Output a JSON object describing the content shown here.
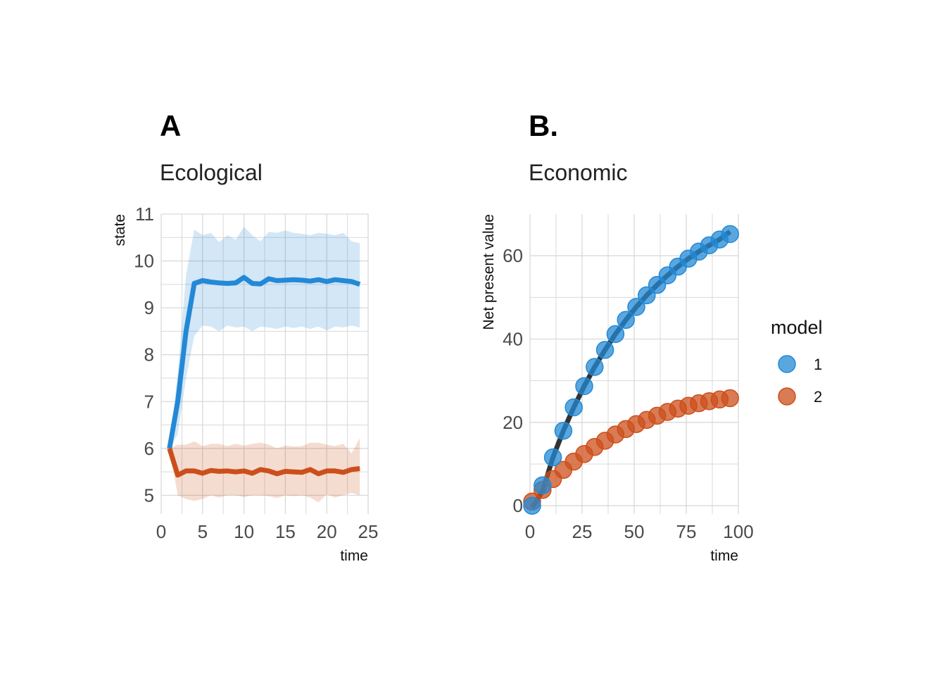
{
  "colors": {
    "model_1": "#2389d6",
    "model_2": "#cc4f1b",
    "fit_line": "#333333",
    "grid": "#d9d9d9"
  },
  "legend": {
    "title": "model",
    "items": [
      "1",
      "2"
    ]
  },
  "panels": {
    "a": {
      "tag": "A",
      "title": "Ecological"
    },
    "b": {
      "tag": "B.",
      "title": "Economic"
    }
  },
  "chart_data": [
    {
      "type": "line",
      "tag": "A",
      "title": "Ecological",
      "xlabel": "time",
      "ylabel": "state",
      "xlim": [
        0,
        25
      ],
      "ylim": [
        4.6,
        11
      ],
      "x_ticks": [
        0,
        5,
        10,
        15,
        20,
        25
      ],
      "y_ticks": [
        5,
        6,
        7,
        8,
        9,
        10,
        11
      ],
      "grid": true,
      "ribbon": true,
      "x": [
        1,
        2,
        3,
        4,
        5,
        6,
        7,
        8,
        9,
        10,
        11,
        12,
        13,
        14,
        15,
        16,
        17,
        18,
        19,
        20,
        21,
        22,
        23,
        24
      ],
      "series": [
        {
          "name": "1",
          "values": [
            6.0,
            7.0,
            8.5,
            9.52,
            9.58,
            9.55,
            9.53,
            9.52,
            9.53,
            9.65,
            9.52,
            9.51,
            9.62,
            9.58,
            9.59,
            9.6,
            9.59,
            9.57,
            9.6,
            9.56,
            9.6,
            9.58,
            9.56,
            9.5
          ],
          "lower": [
            6.0,
            6.3,
            7.5,
            8.4,
            8.62,
            8.6,
            8.5,
            8.62,
            8.58,
            8.6,
            8.5,
            8.6,
            8.58,
            8.55,
            8.6,
            8.57,
            8.6,
            8.55,
            8.6,
            8.52,
            8.6,
            8.58,
            8.62,
            8.58
          ],
          "upper": [
            6.0,
            7.6,
            9.7,
            10.67,
            10.55,
            10.6,
            10.4,
            10.55,
            10.45,
            10.73,
            10.55,
            10.42,
            10.62,
            10.6,
            10.65,
            10.6,
            10.58,
            10.55,
            10.6,
            10.58,
            10.55,
            10.6,
            10.42,
            10.38
          ]
        },
        {
          "name": "2",
          "values": [
            6.0,
            5.43,
            5.52,
            5.52,
            5.47,
            5.53,
            5.51,
            5.52,
            5.5,
            5.52,
            5.47,
            5.55,
            5.52,
            5.46,
            5.51,
            5.5,
            5.49,
            5.55,
            5.46,
            5.52,
            5.52,
            5.49,
            5.55,
            5.57
          ],
          "lower": [
            6.0,
            5.0,
            4.92,
            4.88,
            4.92,
            5.0,
            4.95,
            5.0,
            5.0,
            4.96,
            5.0,
            5.0,
            4.98,
            4.94,
            5.0,
            4.98,
            5.0,
            4.95,
            4.85,
            5.02,
            4.95,
            5.0,
            5.05,
            5.0
          ],
          "upper": [
            6.0,
            6.08,
            6.08,
            6.15,
            6.05,
            6.1,
            6.1,
            6.05,
            6.1,
            6.06,
            6.1,
            6.12,
            6.08,
            6.0,
            6.06,
            6.04,
            6.05,
            6.12,
            6.12,
            6.08,
            6.05,
            6.1,
            5.9,
            6.22
          ]
        }
      ]
    },
    {
      "type": "scatter",
      "tag": "B.",
      "title": "Economic",
      "xlabel": "time",
      "ylabel": "Net present value",
      "xlim": [
        0,
        100
      ],
      "ylim": [
        -2,
        70
      ],
      "x_ticks": [
        0,
        25,
        50,
        75,
        100
      ],
      "y_ticks": [
        0,
        20,
        40,
        60
      ],
      "grid": true,
      "legend_position": "right",
      "x": [
        1,
        6,
        11,
        16,
        21,
        26,
        31,
        36,
        41,
        46,
        51,
        56,
        61,
        66,
        71,
        76,
        81,
        86,
        91,
        96
      ],
      "series": [
        {
          "name": "1",
          "values": [
            0.0,
            4.9,
            11.6,
            18.0,
            23.6,
            28.7,
            33.3,
            37.4,
            41.2,
            44.6,
            47.7,
            50.5,
            53.0,
            55.3,
            57.4,
            59.3,
            61.0,
            62.5,
            63.9,
            65.2
          ]
        },
        {
          "name": "2",
          "values": [
            1.0,
            3.8,
            6.4,
            8.6,
            10.6,
            12.4,
            14.1,
            15.6,
            17.1,
            18.4,
            19.6,
            20.6,
            21.6,
            22.5,
            23.3,
            24.0,
            24.6,
            25.1,
            25.5,
            25.8
          ]
        }
      ],
      "fit_line": {
        "x": [
          1,
          6,
          11,
          16,
          21,
          26,
          31,
          36,
          41,
          46,
          51,
          56,
          61,
          66,
          71,
          76,
          81,
          86,
          91,
          96
        ],
        "values": [
          -0.5,
          3.5,
          11.6,
          18.0,
          23.6,
          28.7,
          33.3,
          37.4,
          41.2,
          44.6,
          47.7,
          50.5,
          53.0,
          55.3,
          57.4,
          59.3,
          61.0,
          62.5,
          63.9,
          65.8
        ]
      }
    }
  ]
}
